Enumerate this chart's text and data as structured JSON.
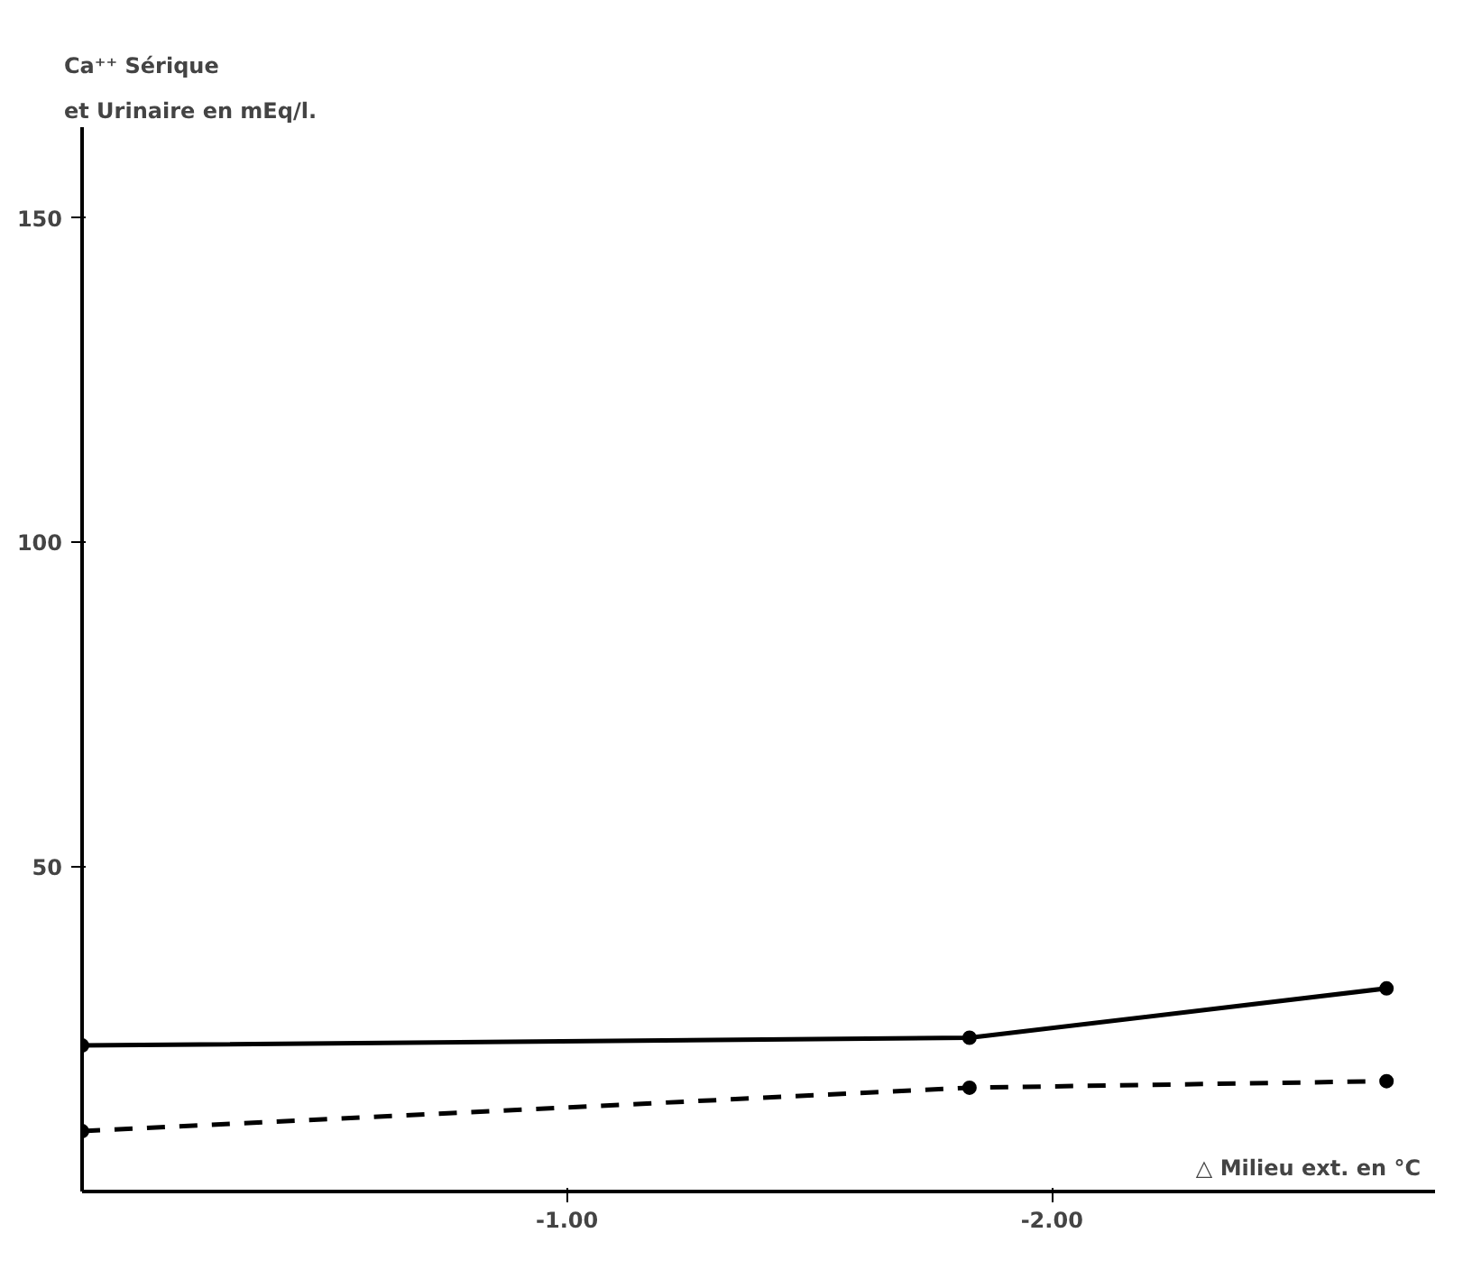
{
  "chart_data": {
    "type": "line",
    "ylabel": "Ca⁺⁺ Sérique\net Urinaire en mEq/l.",
    "xlabel": "△ Milieu ext. en °C",
    "x": [
      0,
      -1.83,
      -2.69
    ],
    "series": [
      {
        "color": "#000000",
        "line_style": "solid",
        "values": [
          22.5,
          23.7,
          31.3
        ]
      },
      {
        "color": "#000000",
        "line_style": "dashed",
        "values": [
          9.3,
          16.0,
          17.0
        ]
      }
    ],
    "xlim": [
      0,
      -2.79
    ],
    "ylim": [
      0,
      164
    ],
    "xticks": [
      {
        "value": -1,
        "label": "-1.00"
      },
      {
        "value": -2,
        "label": "-2.00"
      }
    ],
    "yticks": [
      50,
      100,
      150
    ],
    "marker": "circle",
    "grid": false
  }
}
